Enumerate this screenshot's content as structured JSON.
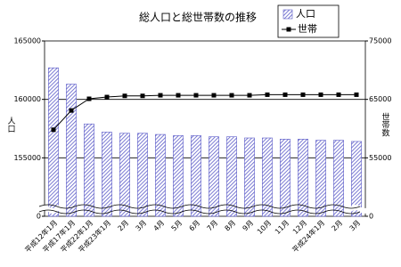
{
  "chart_data": {
    "type": "bar-line",
    "title": "総人口と総世帯数の推移",
    "y_label": "人口",
    "y2_label": "世帯数",
    "categories": [
      "平成12年1月",
      "平成17年1月",
      "平成22年1月",
      "平成23年1月",
      "2月",
      "3月",
      "4月",
      "5月",
      "6月",
      "7月",
      "8月",
      "9月",
      "10月",
      "11月",
      "12月",
      "平成24年1月",
      "2月",
      "3月"
    ],
    "series": [
      {
        "name": "人口",
        "type": "bar",
        "color": "#5a5ac8",
        "values": [
          162700,
          161300,
          157900,
          157200,
          157100,
          157100,
          157000,
          156900,
          156900,
          156800,
          156800,
          156700,
          156700,
          156600,
          156600,
          156500,
          156500,
          156400
        ]
      },
      {
        "name": "世帯",
        "type": "line",
        "axis": "y2",
        "color": "#000000",
        "values": [
          59800,
          63100,
          65100,
          65400,
          65600,
          65600,
          65700,
          65700,
          65700,
          65700,
          65700,
          65700,
          65800,
          65800,
          65800,
          65800,
          65800,
          65800
        ]
      }
    ],
    "ylim": [
      0,
      165000
    ],
    "y_break": [
      0,
      150000
    ],
    "yticks": [
      0,
      155000,
      160000,
      165000
    ],
    "y2lim": [
      0,
      75000
    ],
    "y2_break": [
      0,
      45000
    ],
    "y2ticks": [
      0,
      55000,
      65000,
      75000
    ],
    "grid": true,
    "legend": "top-right"
  }
}
